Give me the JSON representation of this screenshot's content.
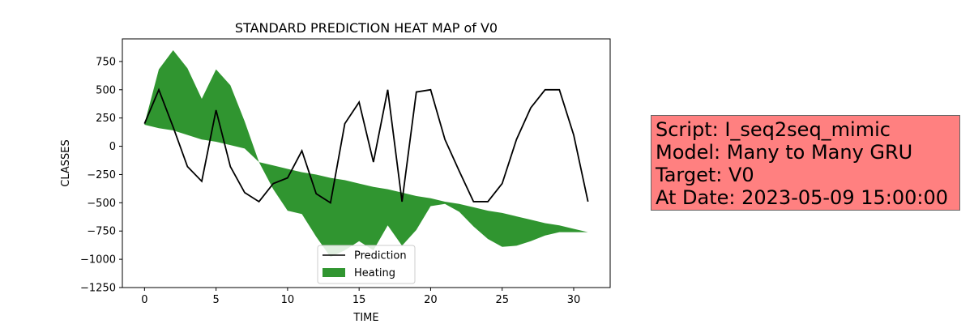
{
  "chart_data": {
    "type": "line",
    "title": "STANDARD PREDICTION HEAT MAP of V0",
    "xlabel": "TIME",
    "ylabel": "CLASSES",
    "xlim": [
      -1.55,
      32.55
    ],
    "ylim": [
      -1250,
      950
    ],
    "x_ticks": [
      0,
      5,
      10,
      15,
      20,
      25,
      30
    ],
    "y_ticks": [
      750,
      500,
      250,
      0,
      -250,
      -500,
      -750,
      -1000,
      -1250
    ],
    "x_tick_labels": [
      "0",
      "5",
      "10",
      "15",
      "20",
      "25",
      "30"
    ],
    "y_tick_labels": [
      "750",
      "500",
      "250",
      "0",
      "−250",
      "−500",
      "−750",
      "−1000",
      "−1250"
    ],
    "legend_position": "lower center",
    "series": [
      {
        "name": "Prediction",
        "kind": "line",
        "color": "#000000",
        "x": [
          0,
          1,
          2,
          3,
          4,
          5,
          6,
          7,
          8,
          9,
          10,
          11,
          12,
          13,
          14,
          15,
          16,
          17,
          18,
          19,
          20,
          21,
          22,
          23,
          24,
          25,
          26,
          27,
          28,
          29,
          30,
          31
        ],
        "y": [
          200,
          500,
          170,
          -180,
          -310,
          320,
          -180,
          -410,
          -490,
          -330,
          -280,
          -40,
          -420,
          -500,
          200,
          390,
          -140,
          500,
          -490,
          480,
          500,
          60,
          -220,
          -490,
          -490,
          -330,
          60,
          340,
          500,
          500,
          100,
          -490
        ]
      },
      {
        "name": "Heating",
        "kind": "fill_between",
        "color": "#1a8a1a",
        "x": [
          0,
          1,
          2,
          3,
          4,
          5,
          6,
          7,
          8,
          9,
          10,
          11,
          12,
          13,
          14,
          15,
          16,
          17,
          18,
          19,
          20,
          21,
          22,
          23,
          24,
          25,
          26,
          27,
          28,
          29,
          30,
          31
        ],
        "y_upper": [
          200,
          680,
          850,
          690,
          420,
          680,
          540,
          220,
          -140,
          -170,
          -200,
          -230,
          -250,
          -280,
          -300,
          -330,
          -360,
          -380,
          -410,
          -440,
          -460,
          -490,
          -510,
          -540,
          -570,
          -590,
          -620,
          -650,
          -680,
          -700,
          -730,
          -760
        ],
        "y_lower": [
          190,
          160,
          140,
          100,
          60,
          40,
          10,
          -20,
          -140,
          -380,
          -570,
          -600,
          -800,
          -980,
          -920,
          -840,
          -920,
          -700,
          -880,
          -740,
          -530,
          -510,
          -580,
          -710,
          -820,
          -890,
          -880,
          -840,
          -790,
          -760,
          -760,
          -760
        ]
      }
    ]
  },
  "info_box": {
    "line1": "Script: I_seq2seq_mimic",
    "line2": "Model: Many to Many GRU",
    "line3": "Target: V0",
    "line4": "At Date: 2023-05-09 15:00:00",
    "background": "#ff8080"
  }
}
